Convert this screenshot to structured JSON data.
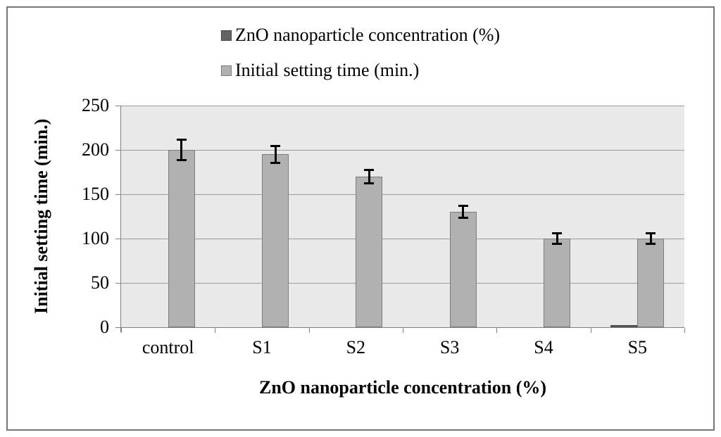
{
  "figure": {
    "background": "#ffffff",
    "border_color": "#777777"
  },
  "chart_data": {
    "type": "bar",
    "title": "",
    "categories": [
      "control",
      "S1",
      "S2",
      "S3",
      "S4",
      "S5"
    ],
    "series": [
      {
        "name": "ZnO nanoparticle concentration (%)",
        "color": "#636363",
        "border_color": "#454545",
        "values": [
          0,
          0,
          0,
          0,
          0,
          2
        ],
        "errors": [
          0,
          0,
          0,
          0,
          0,
          0
        ]
      },
      {
        "name": "Initial setting time (min.)",
        "color": "#b1b1b1",
        "border_color": "#7c7c7c",
        "values": [
          200,
          195,
          170,
          130,
          100,
          100
        ],
        "errors": [
          12,
          10,
          8,
          7,
          6,
          6
        ]
      }
    ],
    "xlabel": "ZnO nanoparticle concentration (%)",
    "ylabel": "Initial setting time (min.)",
    "ylim": [
      0,
      250
    ],
    "yticks": [
      0,
      50,
      100,
      150,
      200,
      250
    ],
    "grid": true,
    "legend_position": "top",
    "plot_background": "#e9e9e9",
    "gridline_color": "#9d9d9d",
    "axis_color": "#808080",
    "error_bar_color": "#000000"
  }
}
